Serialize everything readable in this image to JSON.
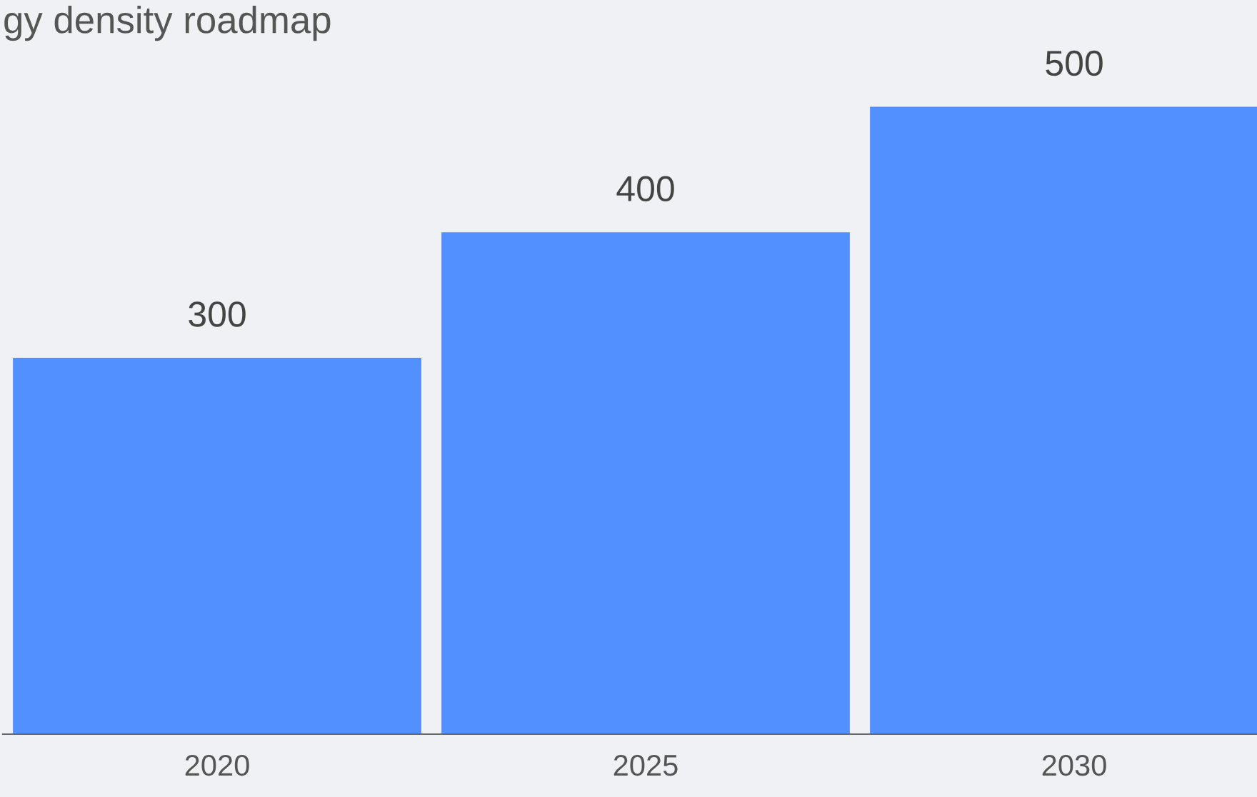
{
  "chart_data": {
    "type": "bar",
    "title": "gy density roadmap",
    "categories": [
      "2020",
      "2025",
      "2030"
    ],
    "values": [
      300,
      400,
      500
    ],
    "color": "#5290ff",
    "data_labels": true,
    "grid": false,
    "legend": false
  }
}
